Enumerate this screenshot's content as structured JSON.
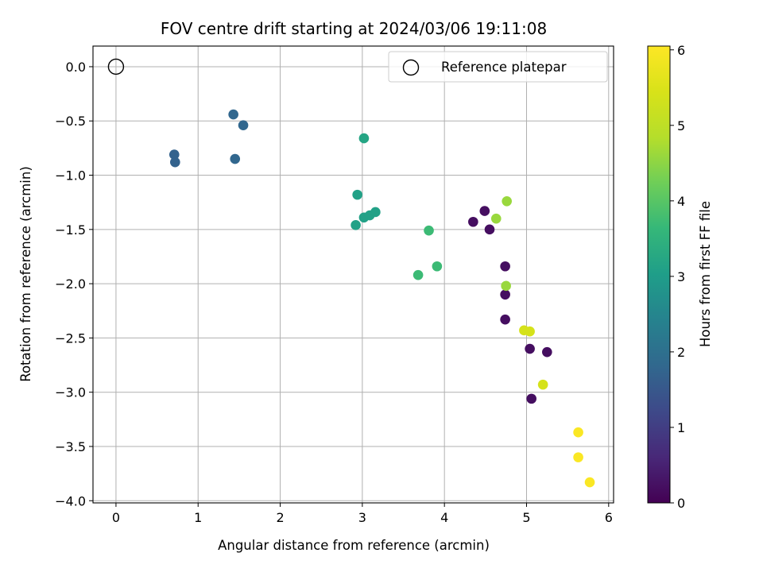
{
  "chart_data": {
    "type": "scatter",
    "title": "FOV centre drift starting at 2024/03/06 19:11:08",
    "xlabel": "Angular distance from reference (arcmin)",
    "ylabel": "Rotation from reference (arcmin)",
    "xlim": [
      -0.28,
      6.06
    ],
    "ylim": [
      -4.02,
      0.19
    ],
    "xticks": [
      0,
      1,
      2,
      3,
      4,
      5,
      6
    ],
    "xtick_labels": [
      "0",
      "1",
      "2",
      "3",
      "4",
      "5",
      "6"
    ],
    "yticks": [
      0.0,
      -0.5,
      -1.0,
      -1.5,
      -2.0,
      -2.5,
      -3.0,
      -3.5,
      -4.0
    ],
    "ytick_labels": [
      "0.0",
      "−0.5",
      "−1.0",
      "−1.5",
      "−2.0",
      "−2.5",
      "−3.0",
      "−3.5",
      "−4.0"
    ],
    "grid": true,
    "legend": {
      "position": "top-right",
      "entries": [
        {
          "label": "Reference platepar",
          "marker": "open-circle"
        }
      ]
    },
    "reference_point": {
      "x": 0,
      "y": 0
    },
    "colorbar": {
      "label": "Hours from first FF file",
      "colormap": "viridis",
      "range": [
        0,
        6.05
      ],
      "ticks": [
        0,
        1,
        2,
        3,
        4,
        5,
        6
      ],
      "tick_labels": [
        "0",
        "1",
        "2",
        "3",
        "4",
        "5",
        "6"
      ]
    },
    "points": [
      {
        "x": 0.71,
        "y": -0.81,
        "t": 1.7
      },
      {
        "x": 0.72,
        "y": -0.88,
        "t": 1.7
      },
      {
        "x": 1.43,
        "y": -0.44,
        "t": 1.8
      },
      {
        "x": 1.55,
        "y": -0.54,
        "t": 1.8
      },
      {
        "x": 1.45,
        "y": -0.85,
        "t": 1.8
      },
      {
        "x": 3.02,
        "y": -0.66,
        "t": 3.2
      },
      {
        "x": 2.94,
        "y": -1.18,
        "t": 3.1
      },
      {
        "x": 2.92,
        "y": -1.46,
        "t": 3.1
      },
      {
        "x": 3.02,
        "y": -1.39,
        "t": 3.1
      },
      {
        "x": 3.09,
        "y": -1.37,
        "t": 3.1
      },
      {
        "x": 3.16,
        "y": -1.34,
        "t": 3.1
      },
      {
        "x": 3.81,
        "y": -1.51,
        "t": 3.7
      },
      {
        "x": 3.91,
        "y": -1.84,
        "t": 3.7
      },
      {
        "x": 3.68,
        "y": -1.92,
        "t": 3.7
      },
      {
        "x": 4.35,
        "y": -1.43,
        "t": 0.2
      },
      {
        "x": 4.49,
        "y": -1.33,
        "t": 0.2
      },
      {
        "x": 4.55,
        "y": -1.5,
        "t": 0.2
      },
      {
        "x": 4.74,
        "y": -1.84,
        "t": 0.2
      },
      {
        "x": 4.74,
        "y": -2.1,
        "t": 0.2
      },
      {
        "x": 4.74,
        "y": -2.33,
        "t": 0.2
      },
      {
        "x": 5.04,
        "y": -2.6,
        "t": 0.2
      },
      {
        "x": 5.25,
        "y": -2.63,
        "t": 0.2
      },
      {
        "x": 5.06,
        "y": -3.06,
        "t": 0.2
      },
      {
        "x": 4.76,
        "y": -1.24,
        "t": 4.6
      },
      {
        "x": 4.63,
        "y": -1.4,
        "t": 4.6
      },
      {
        "x": 4.75,
        "y": -2.02,
        "t": 4.6
      },
      {
        "x": 4.97,
        "y": -2.43,
        "t": 5.4
      },
      {
        "x": 5.04,
        "y": -2.44,
        "t": 5.4
      },
      {
        "x": 5.2,
        "y": -2.93,
        "t": 5.4
      },
      {
        "x": 5.63,
        "y": -3.37,
        "t": 6.0
      },
      {
        "x": 5.63,
        "y": -3.6,
        "t": 6.0
      },
      {
        "x": 5.77,
        "y": -3.83,
        "t": 6.0
      }
    ]
  }
}
